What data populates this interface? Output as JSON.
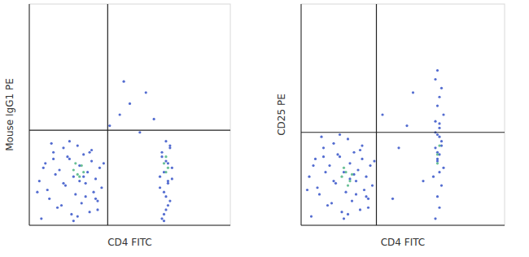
{
  "chart_data": [
    {
      "type": "scatter",
      "x_label": "CD4 FITC",
      "y_label": "Mouse IgG1 PE",
      "xlim": [
        0,
        100
      ],
      "ylim": [
        0,
        100
      ],
      "tick_labels": false,
      "grid": false,
      "quadrant": {
        "x": 39,
        "y": 43
      },
      "series": [
        {
          "color": "#3552c8",
          "marker": "dot",
          "x": [
            5,
            8,
            10,
            12,
            14,
            15,
            17,
            18,
            20,
            21,
            22,
            23,
            24,
            25,
            26,
            27,
            28,
            29,
            30,
            31,
            32,
            33,
            34,
            35,
            36,
            6,
            9,
            11,
            13,
            16,
            19,
            22,
            25,
            28,
            31,
            34,
            37,
            4,
            7,
            12,
            17,
            20,
            24,
            27,
            30,
            33,
            66,
            68,
            70,
            67,
            69,
            65,
            71,
            68,
            66,
            70,
            67,
            69,
            68,
            65,
            71,
            67,
            69,
            66,
            70,
            68,
            67,
            69,
            40,
            45,
            50,
            58,
            62,
            55,
            47
          ],
          "values": [
            20,
            28,
            12,
            33,
            8,
            25,
            35,
            18,
            30,
            5,
            22,
            14,
            36,
            27,
            10,
            32,
            19,
            24,
            6,
            29,
            15,
            21,
            11,
            26,
            17,
            3,
            16,
            37,
            23,
            9,
            31,
            2,
            20,
            13,
            34,
            7,
            28,
            15,
            26,
            30,
            19,
            38,
            4,
            22,
            33,
            12,
            3,
            7,
            11,
            15,
            19,
            22,
            26,
            29,
            33,
            36,
            5,
            9,
            13,
            17,
            21,
            24,
            28,
            31,
            35,
            38,
            2,
            20,
            45,
            50,
            55,
            60,
            48,
            42,
            65
          ]
        },
        {
          "color": "#4fb583",
          "marker": "dot",
          "x": [
            22,
            24,
            26,
            25,
            23,
            27,
            67,
            68,
            69,
            68
          ],
          "values": [
            25,
            23,
            27,
            22,
            28,
            24,
            28,
            31,
            26,
            24
          ]
        }
      ]
    },
    {
      "type": "scatter",
      "x_label": "CD4 FITC",
      "y_label": "CD25 PE",
      "xlim": [
        0,
        100
      ],
      "ylim": [
        0,
        100
      ],
      "tick_labels": false,
      "grid": false,
      "quadrant": {
        "x": 37,
        "y": 42
      },
      "series": [
        {
          "color": "#3552c8",
          "marker": "dot",
          "x": [
            4,
            7,
            9,
            11,
            13,
            14,
            16,
            17,
            19,
            20,
            21,
            22,
            23,
            24,
            25,
            26,
            27,
            28,
            29,
            30,
            31,
            32,
            33,
            34,
            35,
            5,
            8,
            10,
            12,
            15,
            18,
            21,
            24,
            27,
            30,
            33,
            36,
            3,
            6,
            11,
            16,
            19,
            23,
            26,
            29,
            32,
            66,
            68,
            67,
            69,
            65,
            70,
            67,
            68,
            66,
            69,
            67,
            68,
            66,
            70,
            67,
            68,
            69,
            66,
            67,
            68,
            67,
            69,
            66,
            68,
            67,
            68,
            40,
            48,
            55,
            60,
            45,
            52
          ],
          "values": [
            22,
            30,
            14,
            35,
            9,
            27,
            37,
            19,
            31,
            6,
            24,
            15,
            39,
            28,
            11,
            33,
            20,
            25,
            7,
            30,
            16,
            22,
            12,
            27,
            18,
            4,
            17,
            40,
            24,
            10,
            32,
            3,
            21,
            14,
            36,
            8,
            29,
            16,
            27,
            31,
            20,
            41,
            5,
            23,
            34,
            13,
            3,
            8,
            13,
            18,
            22,
            26,
            29,
            32,
            35,
            38,
            41,
            44,
            47,
            50,
            54,
            58,
            62,
            66,
            70,
            24,
            30,
            36,
            42,
            46,
            33,
            40,
            50,
            35,
            60,
            20,
            12,
            45
          ]
        },
        {
          "color": "#4fb583",
          "marker": "dot",
          "x": [
            20,
            22,
            24,
            21,
            23,
            25,
            67,
            68,
            67
          ],
          "values": [
            22,
            24,
            20,
            26,
            18,
            23,
            32,
            36,
            28
          ]
        }
      ]
    }
  ]
}
